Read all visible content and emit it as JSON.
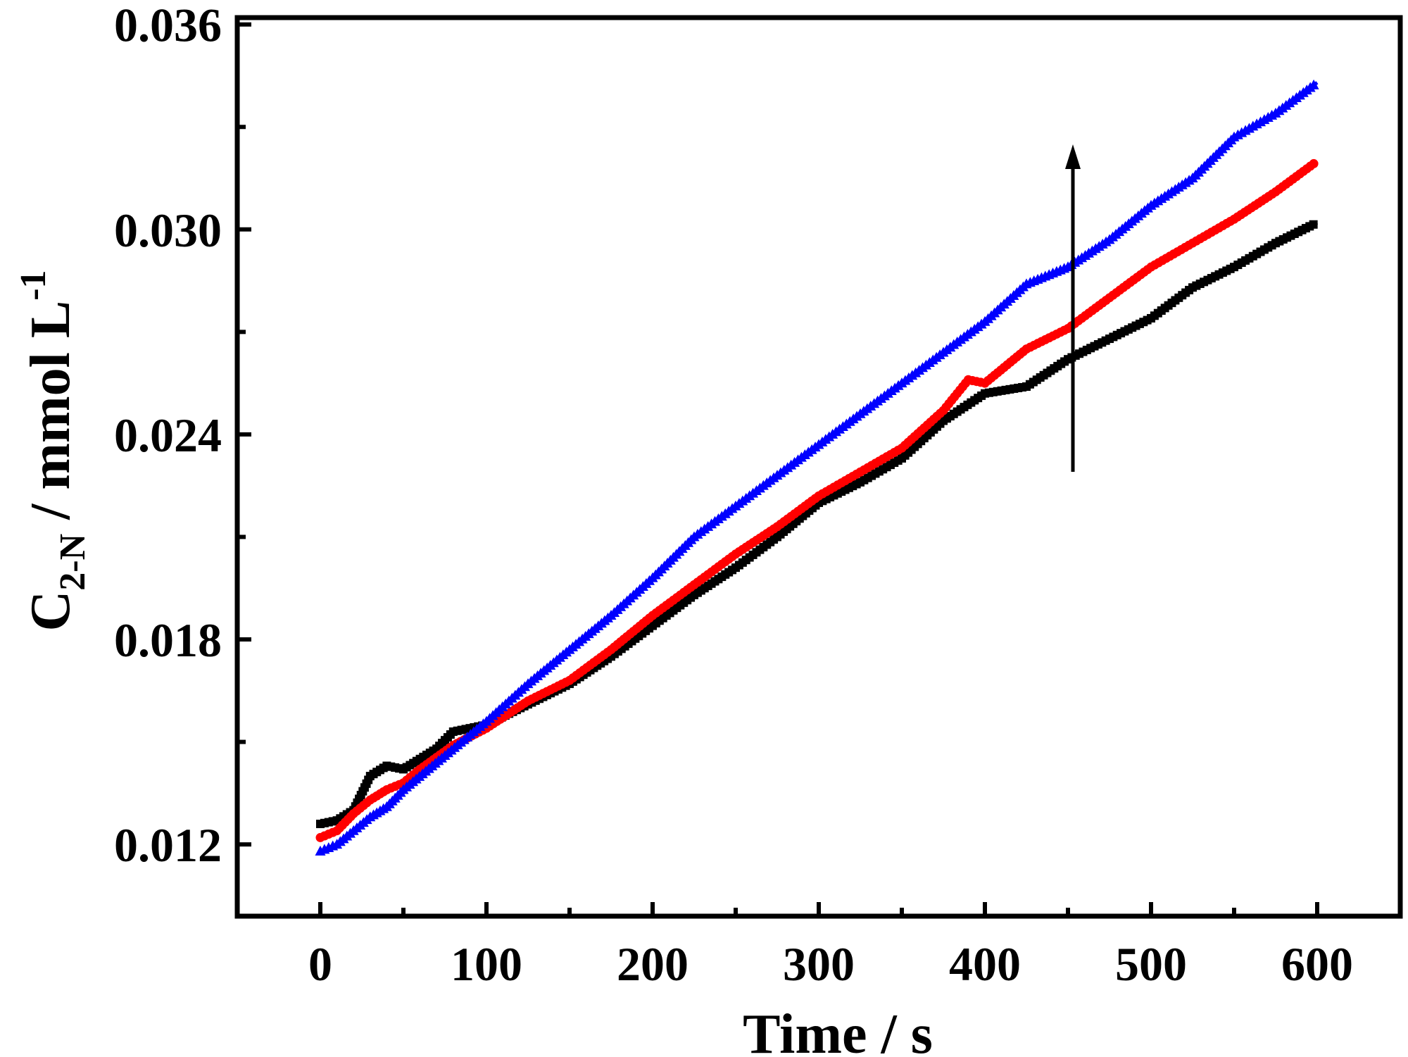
{
  "chart_data": {
    "type": "line",
    "title": "",
    "xlabel": "Time / s",
    "ylabel": {
      "prefix": "C",
      "subscript": "2-N",
      "unit_text": " / mmol L",
      "superscript": "-1"
    },
    "xlim": [
      -50,
      650
    ],
    "ylim": [
      0.0099,
      0.0362
    ],
    "x_ticks": [
      "0",
      "100",
      "200",
      "300",
      "400",
      "500",
      "600"
    ],
    "y_ticks": [
      "0.012",
      "0.018",
      "0.024",
      "0.030",
      "0.036"
    ],
    "grid": false,
    "legend": "none",
    "annotation": "upward arrow near x = 450 indicating increasing trend",
    "series": [
      {
        "color": "#000000",
        "marker": "square",
        "points": [
          [
            0,
            0.0126
          ],
          [
            10,
            0.0127
          ],
          [
            20,
            0.013
          ],
          [
            30,
            0.014
          ],
          [
            40,
            0.0143
          ],
          [
            50,
            0.0142
          ],
          [
            60,
            0.0145
          ],
          [
            70,
            0.0148
          ],
          [
            80,
            0.0153
          ],
          [
            100,
            0.0155
          ],
          [
            125,
            0.0161
          ],
          [
            150,
            0.0167
          ],
          [
            175,
            0.0175
          ],
          [
            200,
            0.0184
          ],
          [
            225,
            0.0193
          ],
          [
            250,
            0.0201
          ],
          [
            275,
            0.021
          ],
          [
            300,
            0.022
          ],
          [
            325,
            0.0226
          ],
          [
            350,
            0.0233
          ],
          [
            375,
            0.0244
          ],
          [
            400,
            0.0252
          ],
          [
            425,
            0.0254
          ],
          [
            450,
            0.0262
          ],
          [
            475,
            0.0268
          ],
          [
            500,
            0.0274
          ],
          [
            525,
            0.0283
          ],
          [
            550,
            0.0289
          ],
          [
            575,
            0.0296
          ],
          [
            600,
            0.0302
          ]
        ]
      },
      {
        "color": "#ff0000",
        "marker": "circle",
        "points": [
          [
            0,
            0.0122
          ],
          [
            10,
            0.0124
          ],
          [
            20,
            0.0129
          ],
          [
            30,
            0.0133
          ],
          [
            40,
            0.0136
          ],
          [
            50,
            0.0138
          ],
          [
            60,
            0.0142
          ],
          [
            80,
            0.0149
          ],
          [
            100,
            0.0154
          ],
          [
            125,
            0.0162
          ],
          [
            150,
            0.0168
          ],
          [
            175,
            0.0177
          ],
          [
            200,
            0.0187
          ],
          [
            225,
            0.0196
          ],
          [
            250,
            0.0205
          ],
          [
            275,
            0.0213
          ],
          [
            300,
            0.0222
          ],
          [
            325,
            0.0229
          ],
          [
            350,
            0.0236
          ],
          [
            375,
            0.0247
          ],
          [
            390,
            0.0256
          ],
          [
            400,
            0.0255
          ],
          [
            425,
            0.0265
          ],
          [
            450,
            0.0271
          ],
          [
            475,
            0.028
          ],
          [
            500,
            0.0289
          ],
          [
            525,
            0.0296
          ],
          [
            550,
            0.0303
          ],
          [
            575,
            0.0311
          ],
          [
            600,
            0.032
          ]
        ]
      },
      {
        "color": "#0000ff",
        "marker": "triangle",
        "points": [
          [
            0,
            0.0118
          ],
          [
            10,
            0.012
          ],
          [
            20,
            0.0124
          ],
          [
            30,
            0.0128
          ],
          [
            40,
            0.0131
          ],
          [
            50,
            0.0136
          ],
          [
            75,
            0.0146
          ],
          [
            100,
            0.0156
          ],
          [
            125,
            0.0167
          ],
          [
            150,
            0.0177
          ],
          [
            175,
            0.0187
          ],
          [
            200,
            0.0198
          ],
          [
            225,
            0.021
          ],
          [
            250,
            0.0219
          ],
          [
            275,
            0.0228
          ],
          [
            300,
            0.0237
          ],
          [
            325,
            0.0246
          ],
          [
            350,
            0.0255
          ],
          [
            375,
            0.0264
          ],
          [
            400,
            0.0273
          ],
          [
            425,
            0.0284
          ],
          [
            450,
            0.0289
          ],
          [
            475,
            0.0297
          ],
          [
            500,
            0.0307
          ],
          [
            525,
            0.0315
          ],
          [
            550,
            0.0327
          ],
          [
            575,
            0.0334
          ],
          [
            600,
            0.0343
          ]
        ]
      }
    ]
  }
}
